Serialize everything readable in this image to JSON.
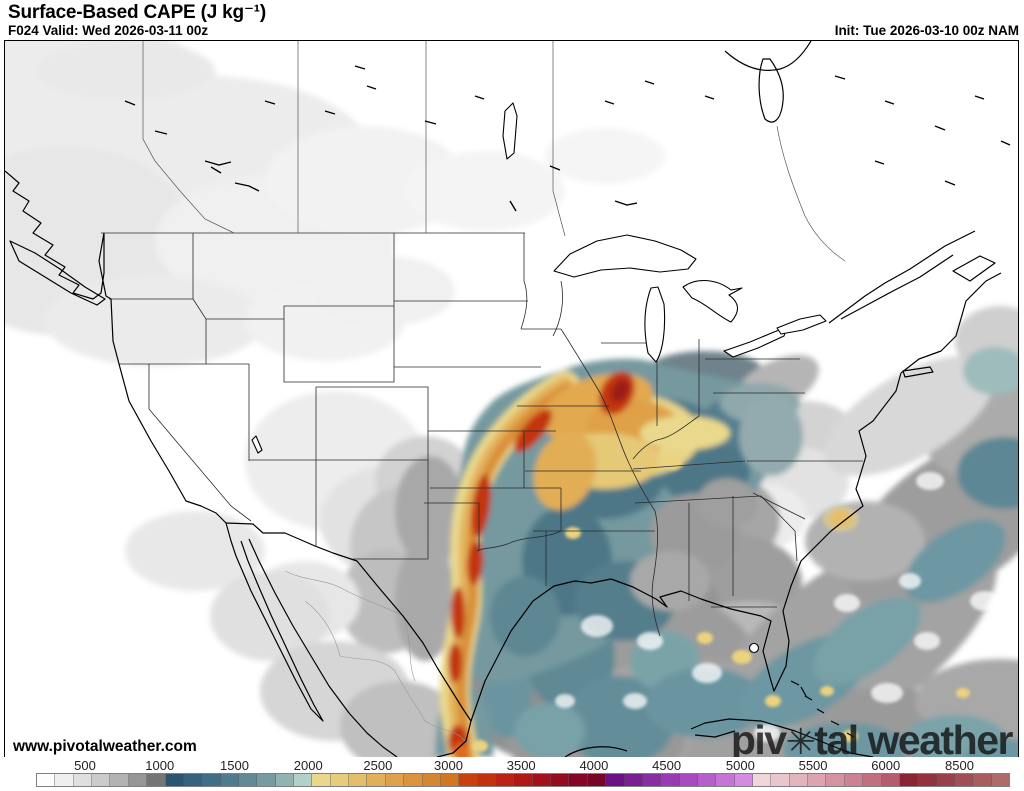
{
  "header": {
    "title": "Surface-Based CAPE (J kg⁻¹)",
    "valid": "F024 Valid: Wed 2026-03-11 00z",
    "init": "Init: Tue 2026-03-10 00z NAM"
  },
  "map": {
    "url_label": "www.pivotalweather.com",
    "watermark": {
      "part1": "piv",
      "gear": "✳",
      "part2": "tal weather"
    }
  },
  "colorbar": {
    "ticks": [
      {
        "label": "500",
        "pos": 8.3
      },
      {
        "label": "1000",
        "pos": 15.6
      },
      {
        "label": "1500",
        "pos": 22.9
      },
      {
        "label": "2000",
        "pos": 30.1
      },
      {
        "label": "2500",
        "pos": 36.9
      },
      {
        "label": "3000",
        "pos": 43.8
      },
      {
        "label": "3500",
        "pos": 50.9
      },
      {
        "label": "4000",
        "pos": 58.0
      },
      {
        "label": "4500",
        "pos": 65.1
      },
      {
        "label": "5000",
        "pos": 72.3
      },
      {
        "label": "5500",
        "pos": 79.4
      },
      {
        "label": "6000",
        "pos": 86.5
      },
      {
        "label": "8500",
        "pos": 93.7
      }
    ],
    "cells": [
      "#fdfdfd",
      "#efefef",
      "#dfdfdf",
      "#cbcbcb",
      "#b3b3b3",
      "#969696",
      "#757575",
      "#2c5470",
      "#34617d",
      "#3f6e86",
      "#4e7c8e",
      "#608b96",
      "#789ba2",
      "#93b3b3",
      "#b3cfc9",
      "#e9d88c",
      "#e7cc7b",
      "#e4be6a",
      "#e1b05a",
      "#dda24b",
      "#d9943d",
      "#d58630",
      "#d0771f",
      "#ca3f0e",
      "#c33010",
      "#ba2313",
      "#af1817",
      "#a3101c",
      "#950b20",
      "#860725",
      "#770529",
      "#6b1284",
      "#7a2093",
      "#892ea2",
      "#983cb1",
      "#a74cbe",
      "#b65fca",
      "#c575d6",
      "#d38ce2",
      "#efd6da",
      "#e9c6cc",
      "#e2b5be",
      "#dba4b0",
      "#d493a1",
      "#cc8292",
      "#c17082",
      "#b55c6f",
      "#8a2532",
      "#92333e",
      "#99414a",
      "#a14f55",
      "#a85d60",
      "#af6b6b"
    ]
  }
}
